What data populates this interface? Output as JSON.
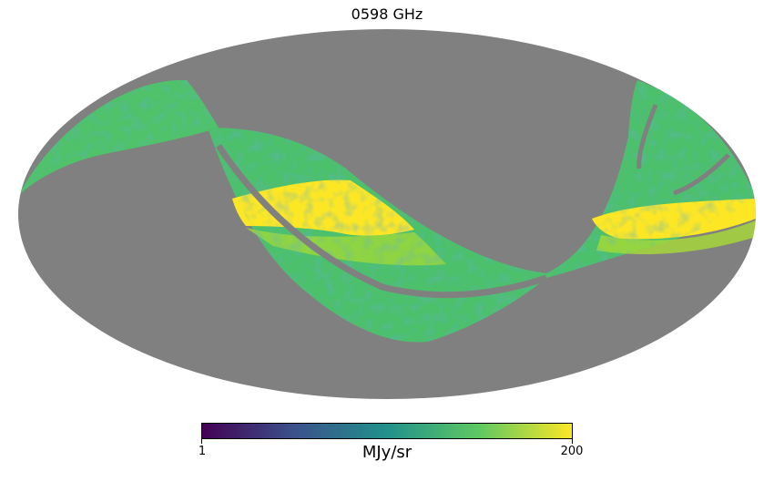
{
  "figure": {
    "title": "0598 GHz",
    "projection": "Mollweide",
    "masked_color": "#808080",
    "background_color": "#ffffff"
  },
  "colorbar": {
    "min_label": "1",
    "max_label": "200",
    "unit": "MJy/sr",
    "colormap": "viridis",
    "colors": [
      "#440154",
      "#3b528b",
      "#21918c",
      "#5ec962",
      "#fde725"
    ]
  }
}
